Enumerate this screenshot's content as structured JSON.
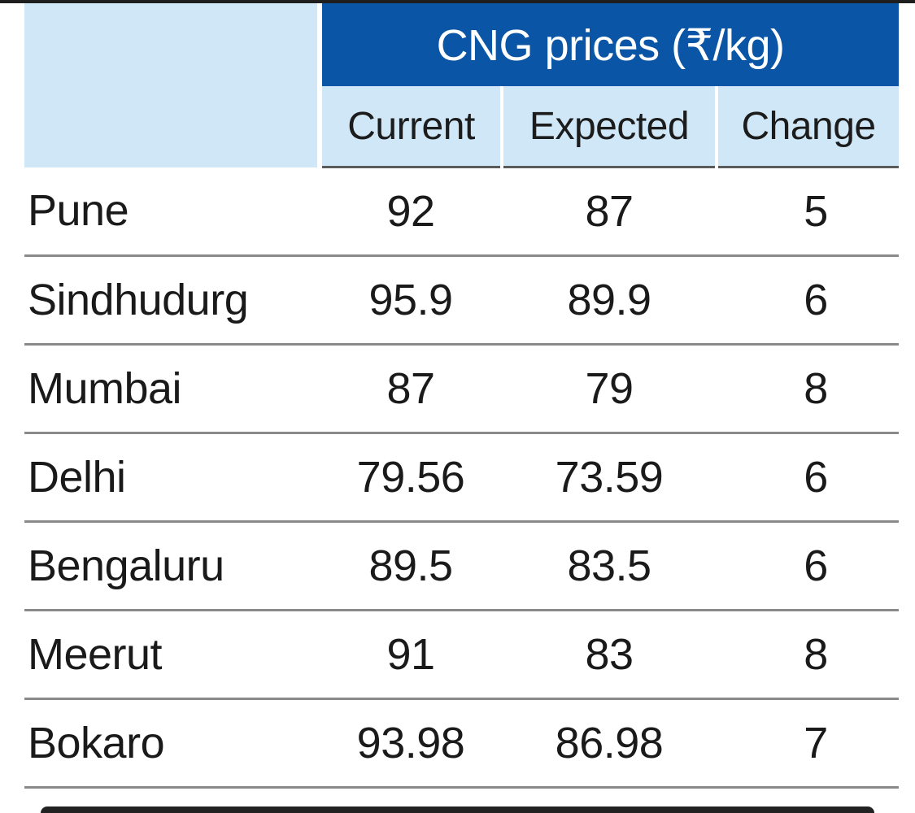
{
  "chart_data": {
    "type": "table",
    "title": "CNG prices (₹/kg)",
    "columns": [
      "Current",
      "Expected",
      "Change"
    ],
    "rows": [
      {
        "city": "Pune",
        "current": "92",
        "expected": "87",
        "change": "5"
      },
      {
        "city": "Sindhudurg",
        "current": "95.9",
        "expected": "89.9",
        "change": "6"
      },
      {
        "city": "Mumbai",
        "current": "87",
        "expected": "79",
        "change": "8"
      },
      {
        "city": "Delhi",
        "current": "79.56",
        "expected": "73.59",
        "change": "6"
      },
      {
        "city": "Bengaluru",
        "current": "89.5",
        "expected": "83.5",
        "change": "6"
      },
      {
        "city": "Meerut",
        "current": "91",
        "expected": "83",
        "change": "8"
      },
      {
        "city": "Bokaro",
        "current": "93.98",
        "expected": "86.98",
        "change": "7"
      }
    ]
  },
  "colors": {
    "header_blue": "#0a55a5",
    "header_light": "#cfe7f7",
    "text": "#1a1a1a"
  }
}
